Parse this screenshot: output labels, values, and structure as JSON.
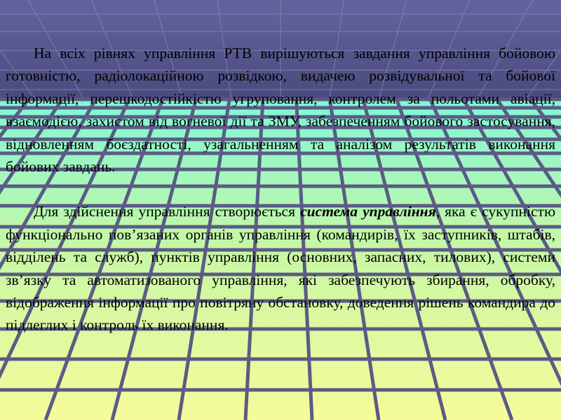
{
  "slide": {
    "paragraph1": "На всіх рівнях управління РТВ вирішуються завдання управління бойовою готовністю, радіолокаційною розвідкою, видачею розвідувальної та бойової інформації, перешкодостійкістю угруповання, контролем за польотами авіації, взаємодією, захистом від вогневої дії та ЗМУ, забезпеченням бойового застосування, відновленням боєздатності, узагальненням та аналізом результатів виконання бойових завдань.",
    "paragraph2_before": "Для здійснення управління створюється ",
    "paragraph2_emphasis": "система управління",
    "paragraph2_after": ", яка є сукупністю функціонально пов’язаних органів управління (командирів, їх заступників, штабів, відділень та служб), пунктів управління (основних, запасних, тилових), системи зв’язку та автоматизованого управління, які забезпечують збирання, обробку, відображення інформації про повітряну обстановку, доведення рішень командира до підлеглих і контроль їх виконання."
  },
  "colors": {
    "sky_top": "#63649e",
    "sky_bottom": "#4a4a7e",
    "floor_top": "#7ff7d6",
    "floor_mid": "#c6f7a6",
    "floor_bottom": "#f6fb9a",
    "grid_line": "#5b5b86"
  }
}
